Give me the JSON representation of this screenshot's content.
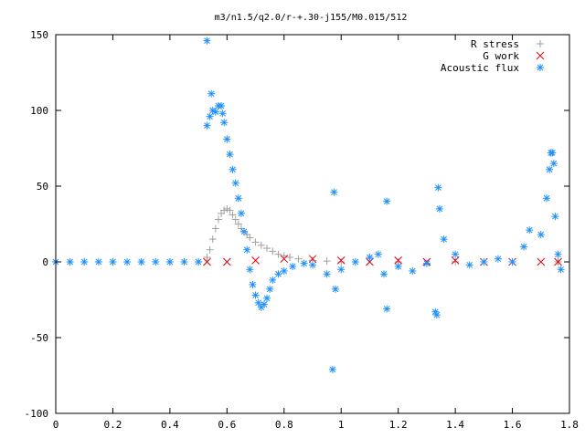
{
  "chart_data": {
    "type": "scatter",
    "title": "m3/n1.5/q2.0/r-+.30-j155/M0.015/512",
    "xlabel": "",
    "ylabel": "",
    "xlim": [
      0,
      1.8
    ],
    "ylim": [
      -100,
      150
    ],
    "x_ticks": [
      "0",
      "0.2",
      "0.4",
      "0.6",
      "0.8",
      "1",
      "1.2",
      "1.4",
      "1.6",
      "1.8"
    ],
    "y_ticks": [
      "150",
      "100",
      "50",
      "0",
      "-50",
      "-100"
    ],
    "grid": false,
    "legend_position": "top-right",
    "series": [
      {
        "name": "R stress",
        "marker": "plus",
        "color": "#a0a0a0",
        "points": [
          [
            0.0,
            0
          ],
          [
            0.1,
            0
          ],
          [
            0.2,
            0
          ],
          [
            0.3,
            0
          ],
          [
            0.4,
            0
          ],
          [
            0.5,
            0
          ],
          [
            0.53,
            3
          ],
          [
            0.54,
            8
          ],
          [
            0.55,
            15
          ],
          [
            0.56,
            22
          ],
          [
            0.57,
            28
          ],
          [
            0.58,
            32
          ],
          [
            0.59,
            34
          ],
          [
            0.6,
            35
          ],
          [
            0.61,
            34
          ],
          [
            0.62,
            31
          ],
          [
            0.63,
            28
          ],
          [
            0.64,
            25
          ],
          [
            0.65,
            22
          ],
          [
            0.66,
            20
          ],
          [
            0.67,
            18
          ],
          [
            0.68,
            16
          ],
          [
            0.7,
            13
          ],
          [
            0.72,
            11
          ],
          [
            0.74,
            9
          ],
          [
            0.76,
            7
          ],
          [
            0.78,
            5
          ],
          [
            0.8,
            4
          ],
          [
            0.82,
            3
          ],
          [
            0.85,
            2
          ],
          [
            0.9,
            1
          ],
          [
            0.95,
            0.5
          ],
          [
            1.0,
            0
          ],
          [
            1.2,
            0
          ],
          [
            1.4,
            0
          ],
          [
            1.6,
            0
          ],
          [
            1.76,
            0
          ]
        ]
      },
      {
        "name": "G work",
        "marker": "cross",
        "color": "#e8000b",
        "points": [
          [
            0.53,
            0
          ],
          [
            0.6,
            0
          ],
          [
            0.7,
            1
          ],
          [
            0.8,
            2
          ],
          [
            0.9,
            2
          ],
          [
            1.0,
            1
          ],
          [
            1.1,
            0
          ],
          [
            1.2,
            1
          ],
          [
            1.3,
            0
          ],
          [
            1.4,
            1
          ],
          [
            1.5,
            0
          ],
          [
            1.6,
            0
          ],
          [
            1.7,
            0
          ],
          [
            1.76,
            0
          ]
        ]
      },
      {
        "name": "Acoustic flux",
        "marker": "star",
        "color": "#1e90ff",
        "points": [
          [
            0.0,
            0
          ],
          [
            0.05,
            0
          ],
          [
            0.1,
            0
          ],
          [
            0.15,
            0
          ],
          [
            0.2,
            0
          ],
          [
            0.25,
            0
          ],
          [
            0.3,
            0
          ],
          [
            0.35,
            0
          ],
          [
            0.4,
            0
          ],
          [
            0.45,
            0
          ],
          [
            0.5,
            0
          ],
          [
            0.53,
            146
          ],
          [
            0.53,
            90
          ],
          [
            0.54,
            96
          ],
          [
            0.545,
            111
          ],
          [
            0.55,
            100
          ],
          [
            0.56,
            99
          ],
          [
            0.57,
            103
          ],
          [
            0.58,
            103
          ],
          [
            0.585,
            98
          ],
          [
            0.59,
            92
          ],
          [
            0.6,
            81
          ],
          [
            0.61,
            71
          ],
          [
            0.62,
            61
          ],
          [
            0.63,
            52
          ],
          [
            0.64,
            42
          ],
          [
            0.65,
            32
          ],
          [
            0.66,
            20
          ],
          [
            0.67,
            8
          ],
          [
            0.68,
            -5
          ],
          [
            0.69,
            -15
          ],
          [
            0.7,
            -22
          ],
          [
            0.71,
            -27
          ],
          [
            0.72,
            -30
          ],
          [
            0.73,
            -28
          ],
          [
            0.74,
            -24
          ],
          [
            0.75,
            -18
          ],
          [
            0.76,
            -12
          ],
          [
            0.78,
            -8
          ],
          [
            0.8,
            -6
          ],
          [
            0.83,
            -3
          ],
          [
            0.87,
            -1
          ],
          [
            0.9,
            -2
          ],
          [
            0.95,
            -8
          ],
          [
            0.97,
            -71
          ],
          [
            0.975,
            46
          ],
          [
            0.98,
            -18
          ],
          [
            1.0,
            -5
          ],
          [
            1.05,
            0
          ],
          [
            1.1,
            3
          ],
          [
            1.13,
            5
          ],
          [
            1.15,
            -8
          ],
          [
            1.16,
            40
          ],
          [
            1.16,
            -31
          ],
          [
            1.2,
            -3
          ],
          [
            1.25,
            -6
          ],
          [
            1.3,
            -1
          ],
          [
            1.33,
            -33
          ],
          [
            1.335,
            -35
          ],
          [
            1.34,
            49
          ],
          [
            1.345,
            35
          ],
          [
            1.36,
            15
          ],
          [
            1.4,
            5
          ],
          [
            1.45,
            -2
          ],
          [
            1.5,
            0
          ],
          [
            1.55,
            2
          ],
          [
            1.6,
            0
          ],
          [
            1.64,
            10
          ],
          [
            1.66,
            21
          ],
          [
            1.7,
            18
          ],
          [
            1.72,
            42
          ],
          [
            1.73,
            61
          ],
          [
            1.735,
            72
          ],
          [
            1.74,
            72
          ],
          [
            1.745,
            65
          ],
          [
            1.75,
            30
          ],
          [
            1.76,
            5
          ],
          [
            1.77,
            -5
          ]
        ]
      }
    ]
  }
}
